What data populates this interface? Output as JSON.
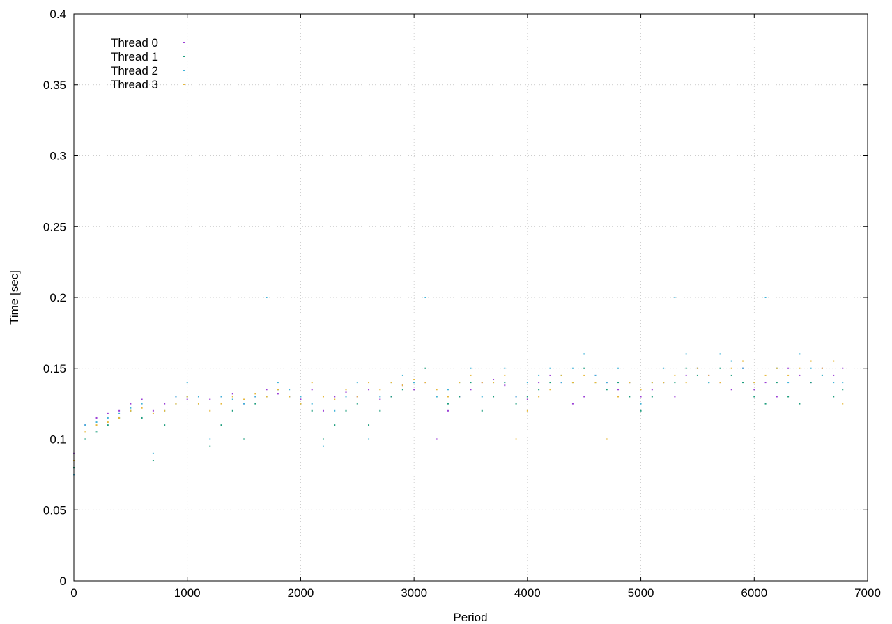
{
  "chart_data": {
    "type": "scatter",
    "title": "",
    "xlabel": "Period",
    "ylabel": "Time [sec]",
    "xlim": [
      0,
      7000
    ],
    "ylim": [
      0,
      0.4
    ],
    "x_ticks": [
      0,
      1000,
      2000,
      3000,
      4000,
      5000,
      6000,
      7000
    ],
    "y_ticks": [
      0,
      0.05,
      0.1,
      0.15,
      0.2,
      0.25,
      0.3,
      0.35,
      0.4
    ],
    "x_tick_labels": [
      "0",
      "1000",
      "2000",
      "3000",
      "4000",
      "5000",
      "6000",
      "7000"
    ],
    "y_tick_labels": [
      "0",
      "0.05",
      "0.1",
      "0.15",
      "0.2",
      "0.25",
      "0.3",
      "0.35",
      "0.4"
    ],
    "grid": true,
    "legend_position": "top-left",
    "marker_size": 2,
    "series": [
      {
        "name": "Thread 0",
        "color": "#9b3fd6",
        "x": [
          0,
          100,
          200,
          300,
          400,
          500,
          600,
          700,
          800,
          900,
          1000,
          1100,
          1200,
          1300,
          1400,
          1500,
          1600,
          1700,
          1800,
          1900,
          2000,
          2100,
          2200,
          2300,
          2400,
          2500,
          2600,
          2700,
          2800,
          2900,
          3000,
          3100,
          3200,
          3300,
          3400,
          3500,
          3600,
          3700,
          3800,
          3900,
          4000,
          4100,
          4200,
          4300,
          4400,
          4500,
          4600,
          4700,
          4800,
          4900,
          5000,
          5100,
          5200,
          5300,
          5400,
          5500,
          5600,
          5700,
          5800,
          5900,
          6000,
          6100,
          6200,
          6300,
          6400,
          6500,
          6600,
          6700,
          6780
        ],
        "y": [
          0.09,
          0.11,
          0.115,
          0.118,
          0.12,
          0.125,
          0.128,
          0.12,
          0.125,
          0.13,
          0.128,
          0.13,
          0.128,
          0.13,
          0.132,
          0.125,
          0.13,
          0.135,
          0.132,
          0.13,
          0.128,
          0.135,
          0.12,
          0.13,
          0.133,
          0.13,
          0.135,
          0.128,
          0.13,
          0.138,
          0.135,
          0.14,
          0.1,
          0.12,
          0.13,
          0.135,
          0.14,
          0.142,
          0.138,
          0.13,
          0.128,
          0.14,
          0.145,
          0.14,
          0.125,
          0.13,
          0.145,
          0.14,
          0.135,
          0.14,
          0.13,
          0.135,
          0.14,
          0.13,
          0.145,
          0.15,
          0.145,
          0.14,
          0.135,
          0.15,
          0.135,
          0.14,
          0.13,
          0.15,
          0.145,
          0.14,
          0.15,
          0.145,
          0.15
        ]
      },
      {
        "name": "Thread 1",
        "color": "#1e9e7e",
        "x": [
          0,
          100,
          200,
          300,
          400,
          500,
          600,
          700,
          800,
          900,
          1000,
          1100,
          1200,
          1300,
          1400,
          1500,
          1600,
          1700,
          1800,
          1900,
          2000,
          2100,
          2200,
          2300,
          2400,
          2500,
          2600,
          2700,
          2800,
          2900,
          3000,
          3100,
          3200,
          3300,
          3400,
          3500,
          3600,
          3700,
          3800,
          3900,
          4000,
          4100,
          4200,
          4300,
          4400,
          4500,
          4600,
          4700,
          4800,
          4900,
          5000,
          5100,
          5200,
          5300,
          5400,
          5500,
          5600,
          5700,
          5800,
          5900,
          6000,
          6100,
          6200,
          6300,
          6400,
          6500,
          6600,
          6700,
          6780
        ],
        "y": [
          0.08,
          0.1,
          0.105,
          0.11,
          0.115,
          0.12,
          0.115,
          0.085,
          0.11,
          0.125,
          0.13,
          0.125,
          0.095,
          0.11,
          0.12,
          0.1,
          0.125,
          0.13,
          0.135,
          0.13,
          0.125,
          0.12,
          0.1,
          0.11,
          0.12,
          0.125,
          0.11,
          0.12,
          0.13,
          0.135,
          0.14,
          0.15,
          0.13,
          0.125,
          0.13,
          0.14,
          0.12,
          0.13,
          0.14,
          0.125,
          0.13,
          0.135,
          0.14,
          0.145,
          0.14,
          0.15,
          0.14,
          0.135,
          0.14,
          0.13,
          0.12,
          0.13,
          0.14,
          0.14,
          0.15,
          0.145,
          0.14,
          0.15,
          0.145,
          0.14,
          0.13,
          0.125,
          0.14,
          0.13,
          0.125,
          0.14,
          0.145,
          0.13,
          0.135
        ]
      },
      {
        "name": "Thread 2",
        "color": "#41b3d8",
        "x": [
          0,
          100,
          200,
          300,
          400,
          500,
          600,
          700,
          800,
          900,
          1000,
          1100,
          1200,
          1300,
          1400,
          1500,
          1600,
          1700,
          1800,
          1900,
          2000,
          2100,
          2200,
          2300,
          2400,
          2500,
          2600,
          2700,
          2800,
          2900,
          3000,
          3100,
          3200,
          3300,
          3400,
          3500,
          3600,
          3700,
          3800,
          3900,
          4000,
          4100,
          4200,
          4300,
          4400,
          4500,
          4600,
          4700,
          4800,
          4900,
          5000,
          5100,
          5200,
          5300,
          5400,
          5500,
          5600,
          5700,
          5800,
          5900,
          6000,
          6100,
          6200,
          6300,
          6400,
          6500,
          6600,
          6700,
          6780
        ],
        "y": [
          0.075,
          0.11,
          0.112,
          0.115,
          0.118,
          0.122,
          0.125,
          0.09,
          0.12,
          0.13,
          0.14,
          0.13,
          0.1,
          0.13,
          0.128,
          0.125,
          0.13,
          0.2,
          0.14,
          0.135,
          0.13,
          0.125,
          0.095,
          0.12,
          0.13,
          0.14,
          0.1,
          0.13,
          0.14,
          0.145,
          0.14,
          0.2,
          0.13,
          0.135,
          0.14,
          0.15,
          0.13,
          0.14,
          0.15,
          0.13,
          0.14,
          0.145,
          0.15,
          0.14,
          0.15,
          0.16,
          0.145,
          0.14,
          0.15,
          0.14,
          0.125,
          0.14,
          0.15,
          0.2,
          0.16,
          0.15,
          0.14,
          0.16,
          0.155,
          0.15,
          0.14,
          0.2,
          0.15,
          0.14,
          0.16,
          0.15,
          0.145,
          0.14,
          0.14
        ]
      },
      {
        "name": "Thread 3",
        "color": "#e6b83a",
        "x": [
          0,
          100,
          200,
          300,
          400,
          500,
          600,
          700,
          800,
          900,
          1000,
          1100,
          1200,
          1300,
          1400,
          1500,
          1600,
          1700,
          1800,
          1900,
          2000,
          2100,
          2200,
          2300,
          2400,
          2500,
          2600,
          2700,
          2800,
          2900,
          3000,
          3100,
          3200,
          3300,
          3400,
          3500,
          3600,
          3700,
          3800,
          3900,
          4000,
          4100,
          4200,
          4300,
          4400,
          4500,
          4600,
          4700,
          4800,
          4900,
          5000,
          5100,
          5200,
          5300,
          5400,
          5500,
          5600,
          5700,
          5800,
          5900,
          6000,
          6100,
          6200,
          6300,
          6400,
          6500,
          6600,
          6700,
          6780
        ],
        "y": [
          0.085,
          0.105,
          0.11,
          0.112,
          0.115,
          0.12,
          0.122,
          0.118,
          0.12,
          0.125,
          0.13,
          0.125,
          0.12,
          0.125,
          0.13,
          0.128,
          0.132,
          0.13,
          0.135,
          0.13,
          0.125,
          0.14,
          0.13,
          0.128,
          0.135,
          0.13,
          0.14,
          0.135,
          0.14,
          0.138,
          0.142,
          0.14,
          0.135,
          0.13,
          0.14,
          0.145,
          0.14,
          0.14,
          0.145,
          0.1,
          0.12,
          0.13,
          0.135,
          0.145,
          0.14,
          0.145,
          0.14,
          0.1,
          0.13,
          0.14,
          0.135,
          0.14,
          0.14,
          0.145,
          0.14,
          0.15,
          0.145,
          0.14,
          0.15,
          0.155,
          0.14,
          0.145,
          0.15,
          0.145,
          0.15,
          0.155,
          0.15,
          0.155,
          0.125
        ]
      }
    ]
  }
}
